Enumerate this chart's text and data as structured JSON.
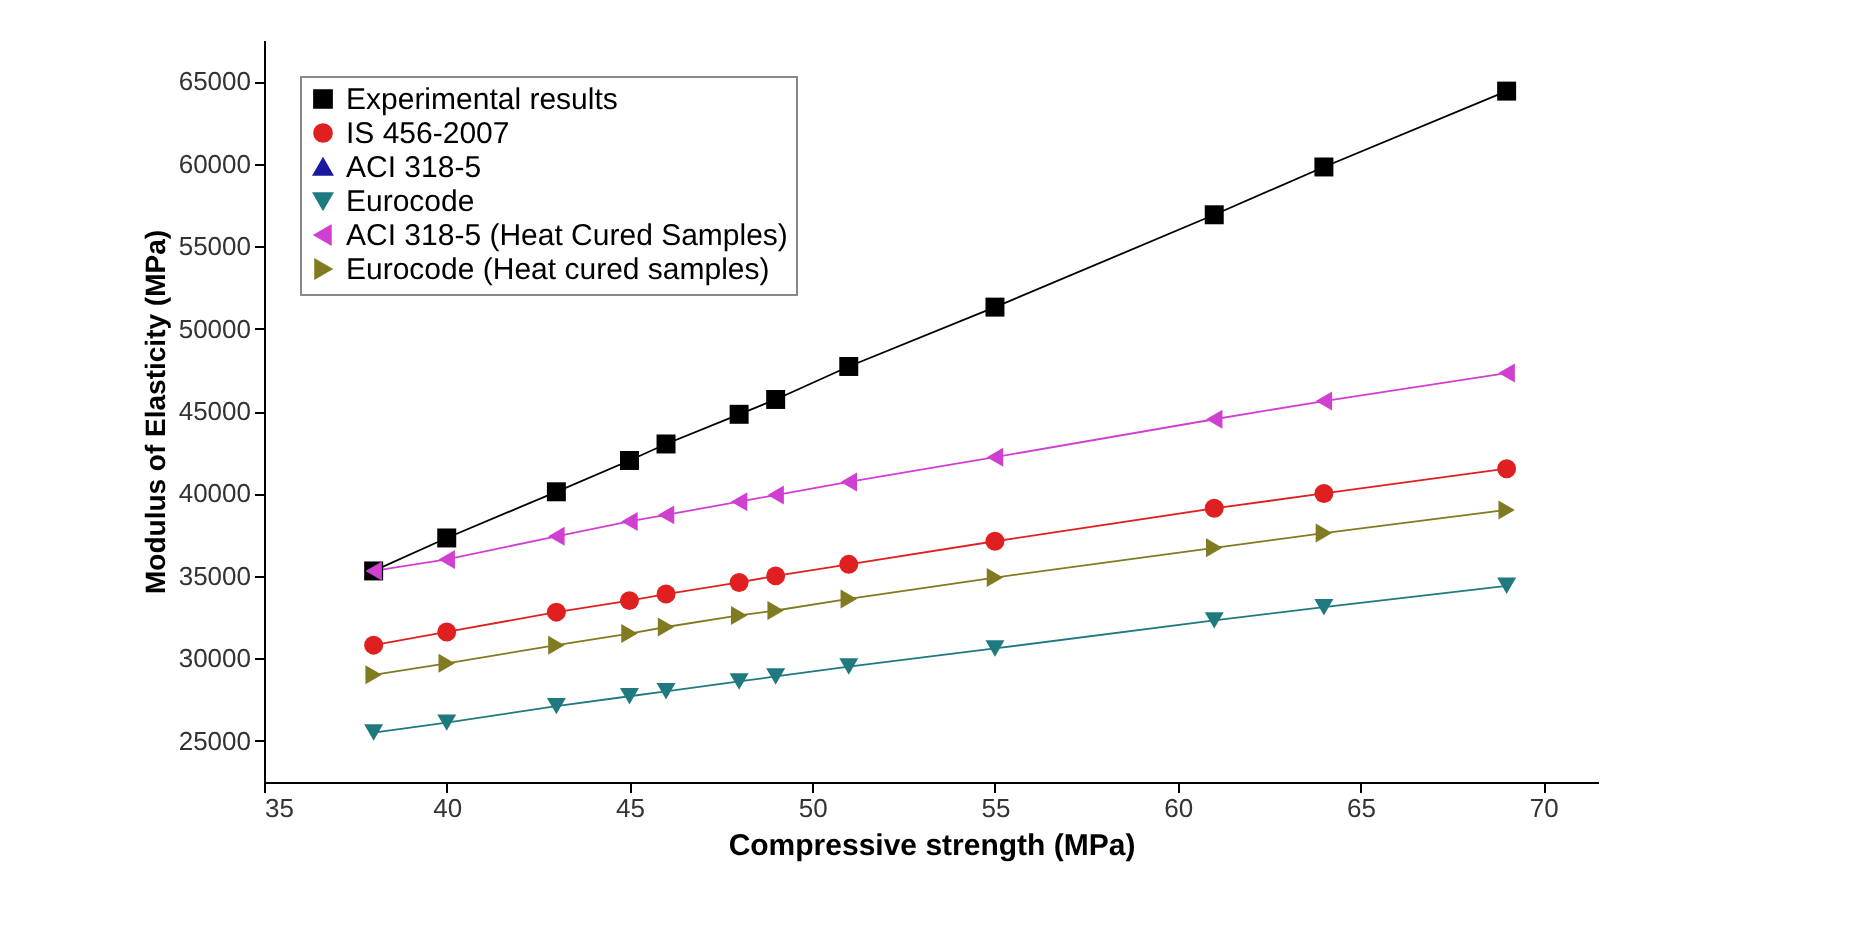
{
  "chart_data": {
    "type": "line",
    "xlabel": "Compressive strength (MPa)",
    "ylabel": "Modulus of Elasticity (MPa)",
    "x": [
      38,
      40,
      43,
      45,
      46,
      48,
      49,
      51,
      55,
      61,
      64,
      69
    ],
    "xlim": [
      35,
      71.5
    ],
    "xticks": [
      35,
      40,
      45,
      50,
      55,
      60,
      65,
      70
    ],
    "ylim": [
      22500,
      67500
    ],
    "yticks": [
      25000,
      30000,
      35000,
      40000,
      45000,
      50000,
      55000,
      60000,
      65000
    ],
    "grid": false,
    "legend": "top left",
    "line_style": "solid",
    "series": [
      {
        "name": "Experimental results",
        "color": "#000000",
        "marker": "square",
        "values": [
          35300,
          37300,
          40100,
          42000,
          43000,
          44800,
          45700,
          47700,
          51300,
          56900,
          59800,
          64400
        ]
      },
      {
        "name": "IS 456-2007",
        "color": "#e02020",
        "marker": "circle",
        "values": [
          30800,
          31600,
          32800,
          33500,
          33900,
          34600,
          35000,
          35700,
          37100,
          39100,
          40000,
          41500
        ]
      },
      {
        "name": "ACI 318-5",
        "color": "#1a1aa0",
        "marker": "triangle",
        "values": [
          null,
          null,
          null,
          null,
          null,
          null,
          null,
          null,
          null,
          null,
          null,
          null
        ]
      },
      {
        "name": "Eurocode",
        "color": "#1f7a80",
        "marker": "triangle-down",
        "values": [
          25500,
          26100,
          27100,
          27700,
          28000,
          28600,
          28900,
          29500,
          30600,
          32300,
          33100,
          34400
        ]
      },
      {
        "name": "ACI 318-5 (Heat Cured Samples)",
        "color": "#d040d0",
        "marker": "triangle-left",
        "values": [
          35300,
          36000,
          37400,
          38300,
          38700,
          39500,
          39900,
          40700,
          42200,
          44500,
          45600,
          47300
        ]
      },
      {
        "name": "Eurocode (Heat cured samples)",
        "color": "#807a20",
        "marker": "triangle-right",
        "values": [
          29000,
          29700,
          30800,
          31500,
          31900,
          32600,
          32900,
          33600,
          34900,
          36700,
          37600,
          39000
        ]
      }
    ]
  }
}
